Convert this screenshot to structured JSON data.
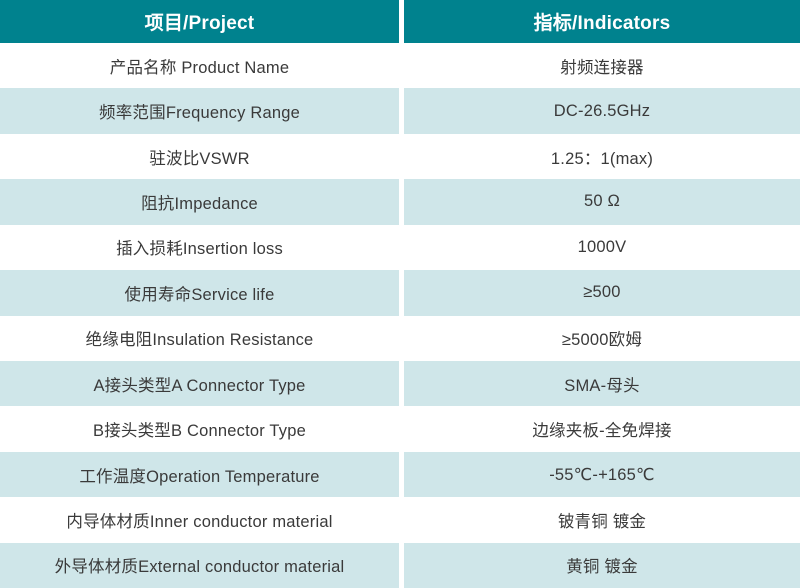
{
  "table": {
    "header": {
      "project": "项目/Project",
      "indicators": "指标/Indicators"
    },
    "rows": [
      {
        "project": "产品名称 Product Name",
        "indicator": "射频连接器"
      },
      {
        "project": "频率范围Frequency Range",
        "indicator": "DC-26.5GHz"
      },
      {
        "project": "驻波比VSWR",
        "indicator": "1.25：1(max)"
      },
      {
        "project": "阻抗Impedance",
        "indicator": "50 Ω"
      },
      {
        "project": "插入损耗Insertion loss",
        "indicator": "1000V"
      },
      {
        "project": "使用寿命Service life",
        "indicator": "≥500"
      },
      {
        "project": "绝缘电阻Insulation Resistance",
        "indicator": "≥5000欧姆"
      },
      {
        "project": "A接头类型A Connector Type",
        "indicator": "SMA-母头"
      },
      {
        "project": "B接头类型B Connector Type",
        "indicator": "边缘夹板-全免焊接"
      },
      {
        "project": "工作温度Operation Temperature",
        "indicator": "-55℃-+165℃"
      },
      {
        "project": "内导体材质Inner conductor material",
        "indicator": "铍青铜 镀金"
      },
      {
        "project": "外导体材质External conductor material",
        "indicator": "黄铜 镀金"
      }
    ],
    "colors": {
      "header_bg": "#00828E",
      "header_text": "#FFFFFF",
      "row_alt_bg": "#CFE6E9",
      "row_bg": "#FFFFFF",
      "body_text": "#3A3A3A"
    }
  }
}
